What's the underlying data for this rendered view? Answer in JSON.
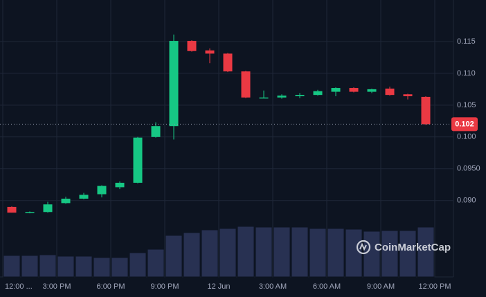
{
  "chart_data": {
    "type": "candlestick",
    "open": [
      0.089,
      0.0881,
      0.0882,
      0.0896,
      0.0903,
      0.091,
      0.0921,
      0.0928,
      0.1,
      0.1017,
      0.1151,
      0.1136,
      0.1131,
      0.1103,
      0.1061,
      0.1062,
      0.1064,
      0.1066,
      0.1071,
      0.1077,
      0.1071,
      0.1076,
      0.1067,
      0.1063
    ],
    "high": [
      0.0891,
      0.0883,
      0.0898,
      0.0906,
      0.0912,
      0.0924,
      0.093,
      0.1,
      0.1023,
      0.1161,
      0.1152,
      0.1139,
      0.1132,
      0.1104,
      0.1073,
      0.1067,
      0.1069,
      0.1074,
      0.1078,
      0.1078,
      0.1076,
      0.1079,
      0.1068,
      0.1064
    ],
    "low": [
      0.0881,
      0.088,
      0.0881,
      0.0895,
      0.0902,
      0.0905,
      0.0918,
      0.0927,
      0.0999,
      0.0996,
      0.1134,
      0.1116,
      0.1102,
      0.1061,
      0.1061,
      0.106,
      0.1061,
      0.1065,
      0.1064,
      0.107,
      0.1069,
      0.1065,
      0.1059,
      0.1019
    ],
    "close": [
      0.0881,
      0.0882,
      0.0894,
      0.0903,
      0.0909,
      0.0923,
      0.0928,
      0.0999,
      0.1017,
      0.1151,
      0.1135,
      0.1131,
      0.1103,
      0.1062,
      0.1062,
      0.1065,
      0.1066,
      0.1072,
      0.1077,
      0.1071,
      0.1075,
      0.1066,
      0.1064,
      0.102
    ],
    "volume": [
      31,
      31,
      32,
      30,
      30,
      28,
      28,
      35,
      40,
      60,
      64,
      68,
      70,
      73,
      72,
      72,
      72,
      70,
      70,
      69,
      66,
      67,
      67,
      72
    ],
    "up_color": "#16c784",
    "down_color": "#ea3943",
    "volume_color": "#283152",
    "ylim": [
      0.078,
      0.12
    ],
    "yticks": [
      0.115,
      {
        "value": 0.11,
        "label": "0.110"
      },
      0.105,
      {
        "value": 0.1,
        "label": "0.100"
      },
      {
        "value": 0.095,
        "label": "0.0950"
      },
      {
        "value": 0.09,
        "label": "0.090"
      }
    ],
    "xticks": [
      {
        "value": -0.5,
        "label": "12:00 ..."
      },
      {
        "value": 2.5,
        "label": "3:00 PM"
      },
      {
        "value": 5.5,
        "label": "6:00 PM"
      },
      {
        "value": 8.5,
        "label": "9:00 PM"
      },
      {
        "value": 11.5,
        "label": "12 Jun"
      },
      {
        "value": 14.5,
        "label": "3:00 AM"
      },
      {
        "value": 17.5,
        "label": "6:00 AM"
      },
      {
        "value": 20.5,
        "label": "9:00 AM"
      },
      {
        "value": 23.5,
        "label": "12:00 PM"
      }
    ],
    "last_price": {
      "value": 0.102,
      "label": "0.102"
    },
    "grid": true,
    "watermark": "CoinMarketCap"
  }
}
